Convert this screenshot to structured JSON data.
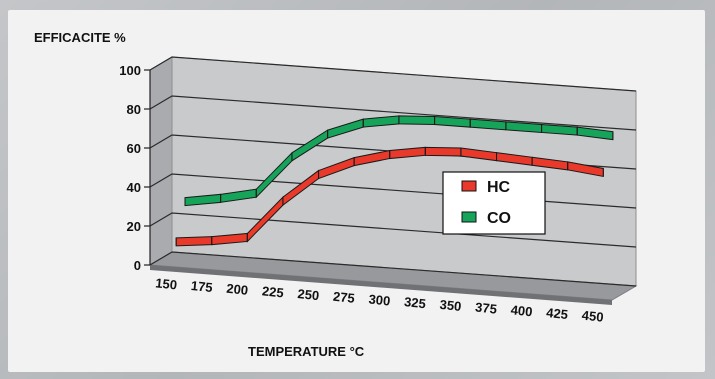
{
  "chart_data": {
    "type": "line",
    "title": "",
    "ylabel": "EFFICACITE %",
    "xlabel": "TEMPERATURE °C",
    "categories": [
      "150",
      "175",
      "200",
      "225",
      "250",
      "275",
      "300",
      "325",
      "350",
      "375",
      "400",
      "425",
      "450"
    ],
    "ylim": [
      0,
      100
    ],
    "yticks": [
      0,
      20,
      40,
      60,
      80,
      100
    ],
    "grid": true,
    "legend_position": "right",
    "series": [
      {
        "name": "HC",
        "color": "#e8392b",
        "values": [
          10,
          12,
          15,
          35,
          50,
          58,
          63,
          66,
          67,
          66,
          65,
          64,
          62
        ]
      },
      {
        "name": "CO",
        "color": "#16a35a",
        "values": [
          28,
          31,
          35,
          55,
          68,
          75,
          78,
          79,
          79,
          79,
          79,
          79,
          78
        ]
      }
    ]
  }
}
